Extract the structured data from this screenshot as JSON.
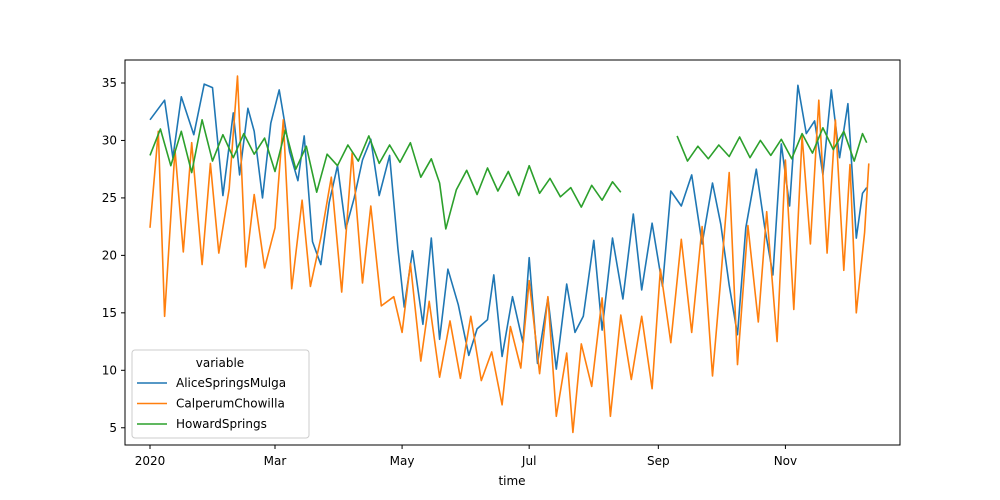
{
  "chart_data": {
    "type": "line",
    "xlabel": "time",
    "ylabel": "",
    "title": "",
    "xlim": [
      "2019-12-20",
      "2020-12-26"
    ],
    "ylim": [
      3.5,
      37.0
    ],
    "y_ticks": [
      5,
      10,
      15,
      20,
      25,
      30,
      35
    ],
    "x_ticks": [
      {
        "date": "2020-01-01",
        "label": "2020"
      },
      {
        "date": "2020-03-01",
        "label": "Mar"
      },
      {
        "date": "2020-05-01",
        "label": "May"
      },
      {
        "date": "2020-07-01",
        "label": "Jul"
      },
      {
        "date": "2020-09-01",
        "label": "Sep"
      },
      {
        "date": "2020-11-01",
        "label": "Nov"
      }
    ],
    "grid": false,
    "legend": {
      "title": "variable",
      "placement": "lower-left"
    },
    "series": [
      {
        "name": "AliceSpringsMulga",
        "color": "#1f77b4",
        "points": [
          [
            "2020-01-01",
            31.8
          ],
          [
            "2020-01-08",
            33.5
          ],
          [
            "2020-01-12",
            28.5
          ],
          [
            "2020-01-16",
            33.8
          ],
          [
            "2020-01-22",
            30.5
          ],
          [
            "2020-01-27",
            34.9
          ],
          [
            "2020-01-31",
            34.6
          ],
          [
            "2020-02-05",
            25.2
          ],
          [
            "2020-02-10",
            32.4
          ],
          [
            "2020-02-13",
            27.0
          ],
          [
            "2020-02-17",
            32.8
          ],
          [
            "2020-02-20",
            30.8
          ],
          [
            "2020-02-24",
            25.0
          ],
          [
            "2020-02-28",
            31.5
          ],
          [
            "2020-03-03",
            34.4
          ],
          [
            "2020-03-08",
            29.0
          ],
          [
            "2020-03-12",
            26.5
          ],
          [
            "2020-03-15",
            30.4
          ],
          [
            "2020-03-19",
            21.2
          ],
          [
            "2020-03-23",
            19.2
          ],
          [
            "2020-03-27",
            24.6
          ],
          [
            "2020-03-31",
            27.8
          ],
          [
            "2020-04-04",
            22.3
          ],
          [
            "2020-04-08",
            25.0
          ],
          [
            "2020-04-12",
            28.3
          ],
          [
            "2020-04-16",
            30.1
          ],
          [
            "2020-04-20",
            25.2
          ],
          [
            "2020-04-25",
            28.7
          ],
          [
            "2020-04-29",
            20.6
          ],
          [
            "2020-05-02",
            15.5
          ],
          [
            "2020-05-06",
            20.4
          ],
          [
            "2020-05-11",
            14.0
          ],
          [
            "2020-05-15",
            21.5
          ],
          [
            "2020-05-19",
            12.7
          ],
          [
            "2020-05-23",
            18.8
          ],
          [
            "2020-05-28",
            15.7
          ],
          [
            "2020-06-02",
            11.3
          ],
          [
            "2020-06-06",
            13.6
          ],
          [
            "2020-06-11",
            14.4
          ],
          [
            "2020-06-14",
            18.3
          ],
          [
            "2020-06-18",
            11.2
          ],
          [
            "2020-06-23",
            16.4
          ],
          [
            "2020-06-28",
            12.4
          ],
          [
            "2020-07-01",
            19.8
          ],
          [
            "2020-07-05",
            10.6
          ],
          [
            "2020-07-10",
            16.3
          ],
          [
            "2020-07-14",
            10.1
          ],
          [
            "2020-07-19",
            17.5
          ],
          [
            "2020-07-23",
            13.3
          ],
          [
            "2020-07-27",
            14.7
          ],
          [
            "2020-08-01",
            21.3
          ],
          [
            "2020-08-05",
            13.5
          ],
          [
            "2020-08-10",
            21.5
          ],
          [
            "2020-08-15",
            16.2
          ],
          [
            "2020-08-20",
            23.6
          ],
          [
            "2020-08-24",
            17.0
          ],
          [
            "2020-08-29",
            22.8
          ],
          [
            "2020-09-03",
            17.3
          ],
          [
            "2020-09-07",
            25.6
          ],
          [
            "2020-09-12",
            24.3
          ],
          [
            "2020-09-17",
            27.0
          ],
          [
            "2020-09-22",
            21.0
          ],
          [
            "2020-09-27",
            26.3
          ],
          [
            "2020-10-01",
            22.7
          ],
          [
            "2020-10-05",
            17.4
          ],
          [
            "2020-10-09",
            13.1
          ],
          [
            "2020-10-13",
            22.4
          ],
          [
            "2020-10-18",
            27.5
          ],
          [
            "2020-10-22",
            22.5
          ],
          [
            "2020-10-26",
            18.3
          ],
          [
            "2020-10-30",
            29.7
          ],
          [
            "2020-11-03",
            24.3
          ],
          [
            "2020-11-07",
            34.8
          ],
          [
            "2020-11-11",
            30.6
          ],
          [
            "2020-11-15",
            31.7
          ],
          [
            "2020-11-19",
            27.0
          ],
          [
            "2020-11-23",
            34.4
          ],
          [
            "2020-11-27",
            28.5
          ],
          [
            "2020-12-01",
            33.2
          ],
          [
            "2020-12-05",
            21.5
          ],
          [
            "2020-12-08",
            25.4
          ],
          [
            "2020-12-10",
            25.9
          ]
        ]
      },
      {
        "name": "CalperumChowilla",
        "color": "#ff7f0e",
        "points": [
          [
            "2020-01-01",
            22.4
          ],
          [
            "2020-01-05",
            30.8
          ],
          [
            "2020-01-08",
            14.7
          ],
          [
            "2020-01-13",
            29.2
          ],
          [
            "2020-01-17",
            20.3
          ],
          [
            "2020-01-21",
            29.8
          ],
          [
            "2020-01-26",
            19.2
          ],
          [
            "2020-01-30",
            28.0
          ],
          [
            "2020-02-03",
            20.2
          ],
          [
            "2020-02-08",
            25.8
          ],
          [
            "2020-02-12",
            35.6
          ],
          [
            "2020-02-16",
            19.0
          ],
          [
            "2020-02-20",
            25.3
          ],
          [
            "2020-02-25",
            18.9
          ],
          [
            "2020-03-01",
            22.4
          ],
          [
            "2020-03-05",
            31.8
          ],
          [
            "2020-03-09",
            17.1
          ],
          [
            "2020-03-14",
            24.8
          ],
          [
            "2020-03-18",
            17.3
          ],
          [
            "2020-03-23",
            21.5
          ],
          [
            "2020-03-28",
            26.8
          ],
          [
            "2020-04-02",
            16.8
          ],
          [
            "2020-04-07",
            28.9
          ],
          [
            "2020-04-12",
            17.6
          ],
          [
            "2020-04-16",
            24.3
          ],
          [
            "2020-04-21",
            15.6
          ],
          [
            "2020-04-27",
            16.4
          ],
          [
            "2020-05-01",
            13.3
          ],
          [
            "2020-05-05",
            19.3
          ],
          [
            "2020-05-10",
            10.8
          ],
          [
            "2020-05-14",
            16.0
          ],
          [
            "2020-05-19",
            9.4
          ],
          [
            "2020-05-24",
            14.3
          ],
          [
            "2020-05-29",
            9.3
          ],
          [
            "2020-06-03",
            14.7
          ],
          [
            "2020-06-08",
            9.1
          ],
          [
            "2020-06-13",
            11.6
          ],
          [
            "2020-06-18",
            7.0
          ],
          [
            "2020-06-22",
            13.8
          ],
          [
            "2020-06-27",
            10.2
          ],
          [
            "2020-07-01",
            17.8
          ],
          [
            "2020-07-06",
            9.7
          ],
          [
            "2020-07-10",
            16.4
          ],
          [
            "2020-07-14",
            6.0
          ],
          [
            "2020-07-19",
            11.5
          ],
          [
            "2020-07-22",
            4.6
          ],
          [
            "2020-07-26",
            12.3
          ],
          [
            "2020-07-31",
            8.6
          ],
          [
            "2020-08-05",
            16.3
          ],
          [
            "2020-08-09",
            6.0
          ],
          [
            "2020-08-14",
            14.8
          ],
          [
            "2020-08-19",
            9.2
          ],
          [
            "2020-08-24",
            14.7
          ],
          [
            "2020-08-29",
            8.4
          ],
          [
            "2020-09-02",
            18.8
          ],
          [
            "2020-09-07",
            12.4
          ],
          [
            "2020-09-12",
            21.4
          ],
          [
            "2020-09-17",
            13.3
          ],
          [
            "2020-09-22",
            22.5
          ],
          [
            "2020-09-27",
            9.5
          ],
          [
            "2020-10-01",
            18.0
          ],
          [
            "2020-10-05",
            27.2
          ],
          [
            "2020-10-09",
            10.5
          ],
          [
            "2020-10-14",
            22.6
          ],
          [
            "2020-10-19",
            14.2
          ],
          [
            "2020-10-23",
            23.8
          ],
          [
            "2020-10-28",
            12.5
          ],
          [
            "2020-11-01",
            28.3
          ],
          [
            "2020-11-05",
            15.3
          ],
          [
            "2020-11-09",
            30.4
          ],
          [
            "2020-11-13",
            21.0
          ],
          [
            "2020-11-17",
            33.5
          ],
          [
            "2020-11-21",
            20.2
          ],
          [
            "2020-11-25",
            31.8
          ],
          [
            "2020-11-29",
            18.7
          ],
          [
            "2020-12-02",
            27.9
          ],
          [
            "2020-12-05",
            15.0
          ],
          [
            "2020-12-09",
            22.0
          ],
          [
            "2020-12-11",
            28.0
          ]
        ]
      },
      {
        "name": "HowardSprings",
        "color": "#2ca02c",
        "points": [
          [
            "2020-01-01",
            28.7
          ],
          [
            "2020-01-06",
            31.0
          ],
          [
            "2020-01-11",
            27.8
          ],
          [
            "2020-01-16",
            30.8
          ],
          [
            "2020-01-21",
            27.2
          ],
          [
            "2020-01-26",
            31.8
          ],
          [
            "2020-01-31",
            28.2
          ],
          [
            "2020-02-05",
            30.5
          ],
          [
            "2020-02-10",
            28.5
          ],
          [
            "2020-02-15",
            30.6
          ],
          [
            "2020-02-20",
            28.8
          ],
          [
            "2020-02-25",
            30.2
          ],
          [
            "2020-03-01",
            27.3
          ],
          [
            "2020-03-06",
            30.9
          ],
          [
            "2020-03-11",
            27.5
          ],
          [
            "2020-03-16",
            29.5
          ],
          [
            "2020-03-21",
            25.5
          ],
          [
            "2020-03-26",
            28.8
          ],
          [
            "2020-03-31",
            27.8
          ],
          [
            "2020-04-05",
            29.6
          ],
          [
            "2020-04-10",
            28.2
          ],
          [
            "2020-04-15",
            30.4
          ],
          [
            "2020-04-20",
            28.0
          ],
          [
            "2020-04-25",
            29.6
          ],
          [
            "2020-04-30",
            28.1
          ],
          [
            "2020-05-05",
            29.8
          ],
          [
            "2020-05-10",
            26.8
          ],
          [
            "2020-05-15",
            28.4
          ],
          [
            "2020-05-19",
            26.3
          ],
          [
            "2020-05-22",
            22.3
          ],
          [
            "2020-05-27",
            25.7
          ],
          [
            "2020-06-01",
            27.4
          ],
          [
            "2020-06-06",
            25.3
          ],
          [
            "2020-06-11",
            27.6
          ],
          [
            "2020-06-16",
            25.6
          ],
          [
            "2020-06-21",
            27.3
          ],
          [
            "2020-06-26",
            25.2
          ],
          [
            "2020-07-01",
            27.8
          ],
          [
            "2020-07-06",
            25.4
          ],
          [
            "2020-07-11",
            26.7
          ],
          [
            "2020-07-16",
            25.1
          ],
          [
            "2020-07-21",
            25.9
          ],
          [
            "2020-07-26",
            24.2
          ],
          [
            "2020-07-31",
            26.1
          ],
          [
            "2020-08-05",
            24.8
          ],
          [
            "2020-08-10",
            26.4
          ],
          [
            "2020-08-14",
            25.5
          ],
          [
            "2020-09-10",
            30.4
          ],
          [
            "2020-09-15",
            28.2
          ],
          [
            "2020-09-20",
            29.5
          ],
          [
            "2020-09-25",
            28.4
          ],
          [
            "2020-09-30",
            29.6
          ],
          [
            "2020-10-05",
            28.6
          ],
          [
            "2020-10-10",
            30.3
          ],
          [
            "2020-10-15",
            28.5
          ],
          [
            "2020-10-20",
            30.0
          ],
          [
            "2020-10-25",
            28.7
          ],
          [
            "2020-10-30",
            30.1
          ],
          [
            "2020-11-04",
            28.4
          ],
          [
            "2020-11-09",
            30.6
          ],
          [
            "2020-11-14",
            28.9
          ],
          [
            "2020-11-19",
            31.1
          ],
          [
            "2020-11-24",
            29.2
          ],
          [
            "2020-11-29",
            30.8
          ],
          [
            "2020-12-04",
            28.2
          ],
          [
            "2020-12-08",
            30.6
          ],
          [
            "2020-12-10",
            29.8
          ]
        ]
      }
    ]
  }
}
